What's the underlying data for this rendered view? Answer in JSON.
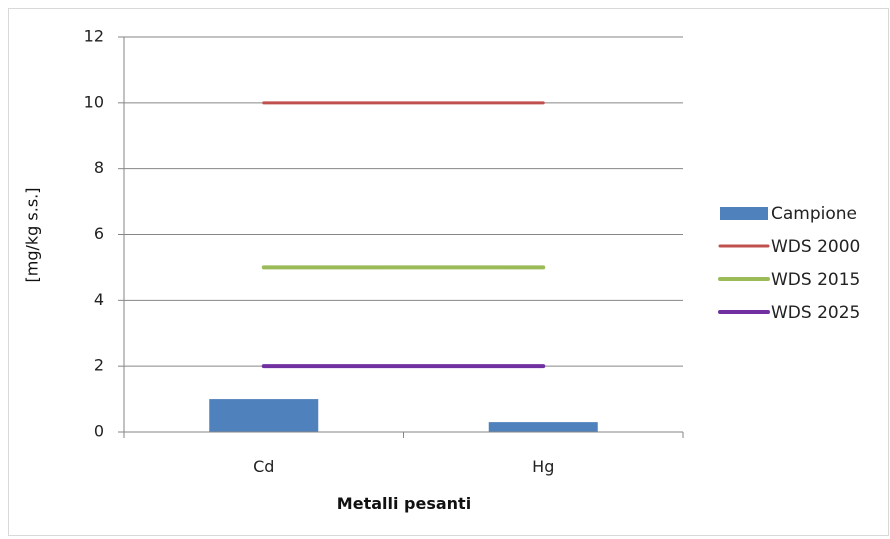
{
  "chart_data": {
    "type": "bar",
    "categories": [
      "Cd",
      "Hg"
    ],
    "series": [
      {
        "name": "Campione",
        "kind": "bar",
        "values": [
          1.0,
          0.3
        ],
        "color": "#4f81bd"
      },
      {
        "name": "WDS 2000",
        "kind": "line",
        "values": [
          10,
          10
        ],
        "color": "#c0504d"
      },
      {
        "name": "WDS 2015",
        "kind": "line",
        "values": [
          5,
          5
        ],
        "color": "#9bbb59"
      },
      {
        "name": "WDS 2025",
        "kind": "line",
        "values": [
          2,
          2
        ],
        "color": "#7030a0"
      }
    ],
    "title": "",
    "xlabel": "Metalli pesanti",
    "ylabel": "[mg/kg s.s.]",
    "ylim": [
      0,
      12
    ],
    "yticks": [
      0,
      2,
      4,
      6,
      8,
      10,
      12
    ],
    "grid": true,
    "legend": "right"
  }
}
